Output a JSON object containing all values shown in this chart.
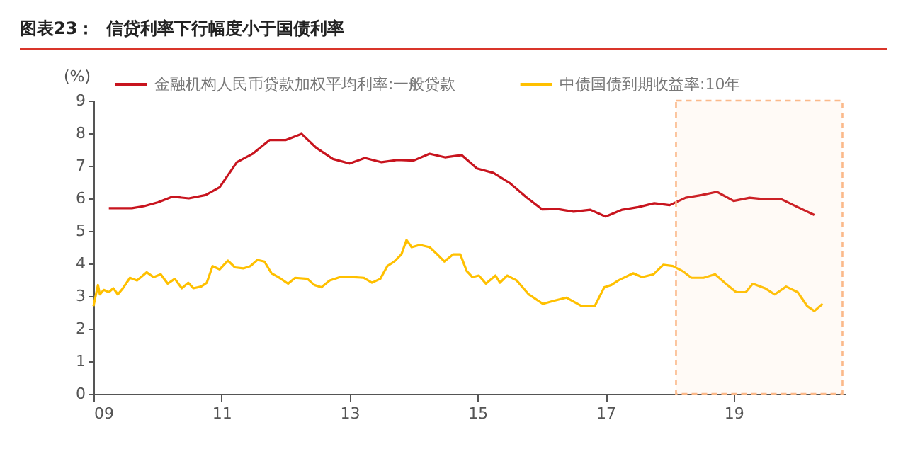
{
  "chart_data": {
    "type": "line",
    "title": "图表23：  信贷利率下行幅度小于国债利率",
    "ylabel": "(%)",
    "xlim": [
      2009,
      2020.75
    ],
    "ylim": [
      0,
      9
    ],
    "xticks": [
      {
        "value": 2009,
        "label": "09"
      },
      {
        "value": 2011,
        "label": "11"
      },
      {
        "value": 2013,
        "label": "13"
      },
      {
        "value": 2015,
        "label": "15"
      },
      {
        "value": 2017,
        "label": "17"
      },
      {
        "value": 2019,
        "label": "19"
      }
    ],
    "yticks": [
      0,
      1,
      2,
      3,
      4,
      5,
      6,
      7,
      8,
      9
    ],
    "grid": false,
    "legend": "top",
    "line_style": "solid",
    "marker": "none",
    "bands": [
      {
        "axis": "x",
        "from": 2018.1,
        "to": 2020.7,
        "color": "#fbb98a",
        "label": null
      }
    ],
    "series": [
      {
        "name": "金融机构人民币贷款加权平均利率:一般贷款",
        "color": "#c8141e",
        "x": [
          2009.24,
          2009.6,
          2009.79,
          2010.01,
          2010.23,
          2010.49,
          2010.75,
          2010.97,
          2011.24,
          2011.48,
          2011.75,
          2012.0,
          2012.25,
          2012.48,
          2012.74,
          2013.0,
          2013.24,
          2013.5,
          2013.75,
          2014.0,
          2014.25,
          2014.49,
          2014.75,
          2014.99,
          2015.25,
          2015.51,
          2015.77,
          2016.01,
          2016.25,
          2016.5,
          2016.76,
          2017.0,
          2017.26,
          2017.51,
          2017.76,
          2018.0,
          2018.25,
          2018.5,
          2018.74,
          2019.0,
          2019.25,
          2019.5,
          2019.75,
          2020.0,
          2020.26
        ],
        "values": [
          5.7,
          5.7,
          5.76,
          5.88,
          6.05,
          6.0,
          6.1,
          6.34,
          7.11,
          7.36,
          7.79,
          7.79,
          7.98,
          7.55,
          7.21,
          7.07,
          7.24,
          7.11,
          7.18,
          7.16,
          7.37,
          7.26,
          7.33,
          6.92,
          6.78,
          6.46,
          6.02,
          5.66,
          5.67,
          5.59,
          5.65,
          5.44,
          5.65,
          5.73,
          5.85,
          5.79,
          6.02,
          6.1,
          6.2,
          5.92,
          6.02,
          5.97,
          5.97,
          5.73,
          5.49
        ]
      },
      {
        "name": "中债国债到期收益率:10年",
        "color": "#ffc000",
        "x": [
          2009.0,
          2009.07,
          2009.1,
          2009.16,
          2009.24,
          2009.31,
          2009.38,
          2009.46,
          2009.57,
          2009.68,
          2009.83,
          2009.94,
          2010.05,
          2010.16,
          2010.27,
          2010.38,
          2010.48,
          2010.56,
          2010.68,
          2010.77,
          2010.86,
          2010.97,
          2011.1,
          2011.21,
          2011.34,
          2011.45,
          2011.56,
          2011.67,
          2011.78,
          2011.89,
          2012.04,
          2012.15,
          2012.34,
          2012.45,
          2012.56,
          2012.69,
          2012.85,
          2013.07,
          2013.22,
          2013.35,
          2013.48,
          2013.59,
          2013.7,
          2013.81,
          2013.89,
          2013.97,
          2014.1,
          2014.25,
          2014.37,
          2014.48,
          2014.62,
          2014.73,
          2014.83,
          2014.92,
          2015.02,
          2015.13,
          2015.28,
          2015.35,
          2015.46,
          2015.61,
          2015.8,
          2016.02,
          2016.2,
          2016.39,
          2016.61,
          2016.83,
          2016.98,
          2017.09,
          2017.2,
          2017.43,
          2017.57,
          2017.75,
          2017.9,
          2018.05,
          2018.2,
          2018.34,
          2018.53,
          2018.71,
          2018.86,
          2019.04,
          2019.19,
          2019.3,
          2019.49,
          2019.64,
          2019.82,
          2020.0,
          2020.15,
          2020.26,
          2020.39
        ],
        "values": [
          2.69,
          3.34,
          3.05,
          3.19,
          3.12,
          3.24,
          3.05,
          3.24,
          3.56,
          3.48,
          3.73,
          3.58,
          3.67,
          3.38,
          3.53,
          3.24,
          3.41,
          3.24,
          3.29,
          3.41,
          3.92,
          3.82,
          4.09,
          3.88,
          3.85,
          3.92,
          4.11,
          4.06,
          3.7,
          3.58,
          3.38,
          3.56,
          3.53,
          3.34,
          3.27,
          3.48,
          3.58,
          3.58,
          3.56,
          3.41,
          3.53,
          3.92,
          4.06,
          4.28,
          4.72,
          4.5,
          4.57,
          4.5,
          4.28,
          4.06,
          4.28,
          4.28,
          3.77,
          3.58,
          3.63,
          3.38,
          3.63,
          3.41,
          3.63,
          3.48,
          3.05,
          2.76,
          2.86,
          2.95,
          2.71,
          2.69,
          3.27,
          3.34,
          3.48,
          3.7,
          3.58,
          3.67,
          3.96,
          3.92,
          3.77,
          3.56,
          3.56,
          3.67,
          3.41,
          3.12,
          3.12,
          3.38,
          3.24,
          3.05,
          3.29,
          3.12,
          2.69,
          2.54,
          2.76
        ]
      }
    ]
  }
}
